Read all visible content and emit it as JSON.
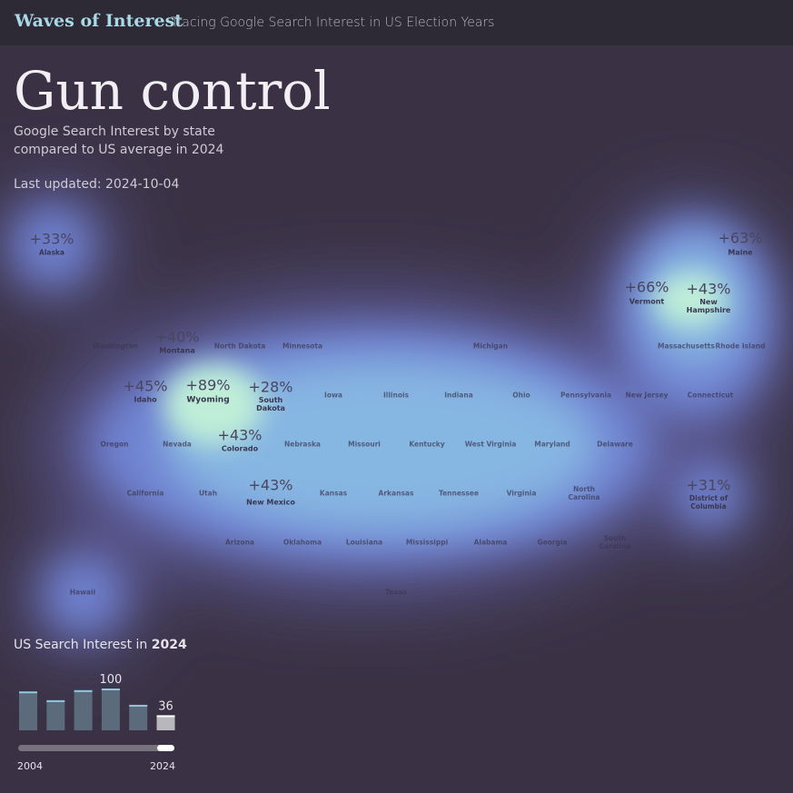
{
  "header": {
    "title": "Waves of Interest",
    "subtitle": "Tracing Google Search Interest in US Election Years"
  },
  "topic": {
    "title": "Gun control",
    "description": [
      "Google Search Interest by state",
      "compared to US average in 2024"
    ],
    "last_updated": "Last updated: 2024-10-04"
  },
  "map": {
    "states": [
      {
        "name": "Alaska",
        "interest": "+33%"
      },
      {
        "name": "Washington"
      },
      {
        "name": "Montana",
        "interest": "+40%"
      },
      {
        "name": "North Dakota"
      },
      {
        "name": "Minnesota"
      },
      {
        "name": "Michigan"
      },
      {
        "name": "Maine",
        "interest": "+63%"
      },
      {
        "name": "Vermont",
        "interest": "+66%"
      },
      {
        "name": "New Hampshire",
        "interest": "+43%"
      },
      {
        "name": "Massachusetts"
      },
      {
        "name": "Rhode Island"
      },
      {
        "name": "Idaho",
        "interest": "+45%"
      },
      {
        "name": "Wyoming",
        "interest": "+89%"
      },
      {
        "name": "South Dakota",
        "interest": "+28%"
      },
      {
        "name": "Iowa"
      },
      {
        "name": "Illinois"
      },
      {
        "name": "Indiana"
      },
      {
        "name": "Ohio"
      },
      {
        "name": "Pennsylvania"
      },
      {
        "name": "New Jersey"
      },
      {
        "name": "Connecticut"
      },
      {
        "name": "Oregon"
      },
      {
        "name": "Nevada"
      },
      {
        "name": "Colorado",
        "interest": "+43%"
      },
      {
        "name": "Nebraska"
      },
      {
        "name": "Missouri"
      },
      {
        "name": "Kentucky"
      },
      {
        "name": "West Virginia"
      },
      {
        "name": "Maryland"
      },
      {
        "name": "Delaware"
      },
      {
        "name": "California"
      },
      {
        "name": "Utah"
      },
      {
        "name": "New Mexico",
        "interest": "+43%"
      },
      {
        "name": "Kansas"
      },
      {
        "name": "Arkansas"
      },
      {
        "name": "Tennessee"
      },
      {
        "name": "Virginia"
      },
      {
        "name": "North Carolina"
      },
      {
        "name": "District of Columbia",
        "interest": "+31%"
      },
      {
        "name": "Arizona"
      },
      {
        "name": "Oklahoma"
      },
      {
        "name": "Louisiana"
      },
      {
        "name": "Mississippi"
      },
      {
        "name": "Alabama"
      },
      {
        "name": "Georgia"
      },
      {
        "name": "South Carolina"
      },
      {
        "name": "Hawaii"
      },
      {
        "name": "Texas"
      }
    ]
  },
  "chart_data": {
    "type": "bar",
    "title": "US Search Interest in",
    "title_year": "2024",
    "categories": [
      "2004",
      null,
      null,
      null,
      null,
      "2024"
    ],
    "values": [
      93,
      72,
      96,
      100,
      61,
      36
    ],
    "value_labels": [
      null,
      null,
      null,
      "100",
      null,
      "36"
    ],
    "color": "#5b6b7c",
    "highlight_color": "#b8b8bc",
    "cap_color": "#8fc6e0",
    "ylim": [
      0,
      100
    ]
  }
}
